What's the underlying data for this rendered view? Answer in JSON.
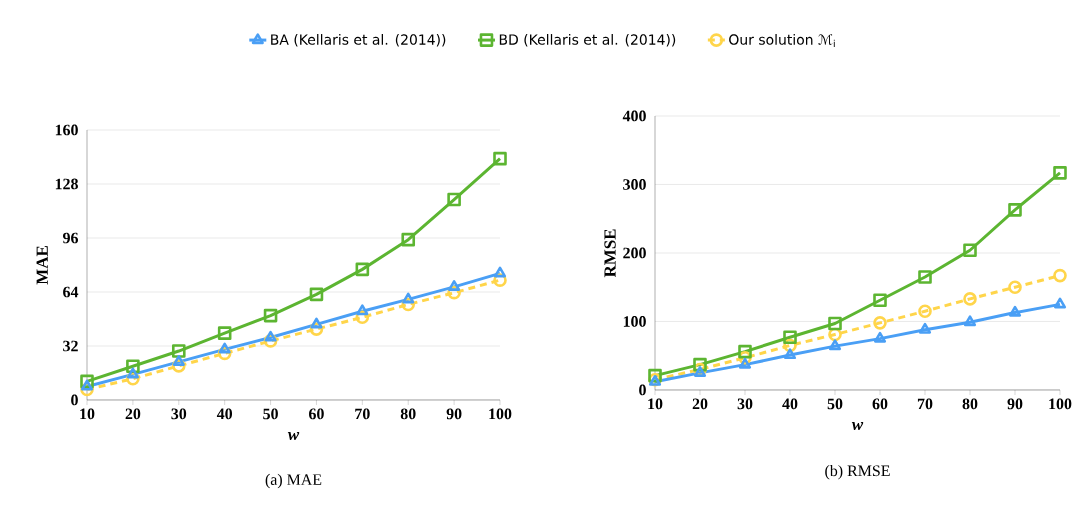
{
  "chart_data": [
    {
      "type": "line",
      "xlabel": "w",
      "ylabel": "MAE",
      "x": [
        10,
        20,
        30,
        40,
        50,
        60,
        70,
        80,
        90,
        100
      ],
      "xlim": [
        10,
        100
      ],
      "xticks": [
        10,
        20,
        30,
        40,
        50,
        60,
        70,
        80,
        90,
        100
      ],
      "ylim": [
        0,
        160
      ],
      "yticks": [
        0,
        32,
        64,
        96,
        128,
        160
      ],
      "grid": "y",
      "legend": "top",
      "series": [
        {
          "name": "BA (Kellaris et al. (2014))",
          "color": "#4a9ff5",
          "marker": "triangle",
          "line_style": "solid",
          "values": [
            8,
            15.2,
            22.6,
            30,
            37,
            44.8,
            52.6,
            59.6,
            67,
            75
          ]
        },
        {
          "name": "BD (Kellaris et al. (2014))",
          "color": "#5cb531",
          "marker": "square",
          "line_style": "solid",
          "values": [
            11,
            20,
            29,
            39.6,
            50,
            62.6,
            77.4,
            95,
            118.8,
            143
          ]
        },
        {
          "name": "Our solution ℳ$_{i}$",
          "color": "#ffd54a",
          "marker": "circle",
          "line_style": "dashed",
          "values": [
            6.2,
            12.6,
            20.2,
            27.6,
            35,
            42,
            49,
            56.6,
            63.6,
            71
          ]
        }
      ],
      "annotations": [
        "(a) MAE"
      ]
    },
    {
      "type": "line",
      "xlabel": "w",
      "ylabel": "RMSE",
      "x": [
        10,
        20,
        30,
        40,
        50,
        60,
        70,
        80,
        90,
        100
      ],
      "xlim": [
        10,
        100
      ],
      "xticks": [
        10,
        20,
        30,
        40,
        50,
        60,
        70,
        80,
        90,
        100
      ],
      "ylim": [
        0,
        400
      ],
      "yticks": [
        0,
        100,
        200,
        300,
        400
      ],
      "grid": "y",
      "series": [
        {
          "color": "#4a9ff5",
          "marker": "triangle",
          "line_style": "solid",
          "values": [
            12,
            25,
            37,
            51,
            64,
            75,
            88,
            99,
            113,
            125
          ]
        },
        {
          "color": "#5cb531",
          "marker": "square",
          "line_style": "solid",
          "values": [
            21,
            37,
            56,
            77,
            97,
            131,
            165,
            204,
            263,
            317
          ]
        },
        {
          "color": "#ffd54a",
          "marker": "circle",
          "line_style": "dashed",
          "values": [
            15,
            30,
            47,
            65,
            81,
            98,
            115,
            133,
            150,
            167
          ]
        }
      ],
      "annotations": [
        "(b) RMSE"
      ]
    }
  ]
}
